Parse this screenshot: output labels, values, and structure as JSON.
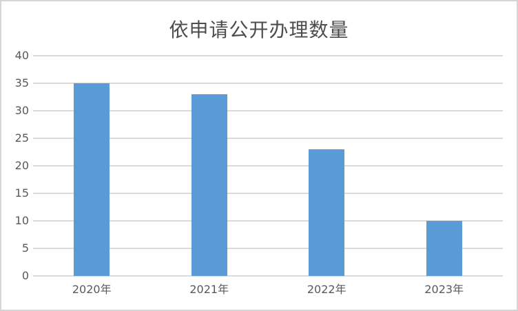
{
  "window": {
    "background": "#FFFFFF",
    "border_color": "#D5D5D5"
  },
  "chart_data": {
    "type": "bar",
    "title": "依申请公开办理数量",
    "categories": [
      "2020年",
      "2021年",
      "2022年",
      "2023年"
    ],
    "values": [
      35,
      33,
      23,
      10
    ],
    "xlabel": "",
    "ylabel": "",
    "ylim": [
      0,
      40
    ],
    "ytick_step": 5,
    "yticks": [
      0,
      5,
      10,
      15,
      20,
      25,
      30,
      35,
      40
    ],
    "grid": true,
    "legend": false,
    "legend_position": "none",
    "bar_color": "#5B9BD5",
    "gridline_color": "#DADADA",
    "text_color": "#595959",
    "title_color": "#4D4D4D"
  }
}
